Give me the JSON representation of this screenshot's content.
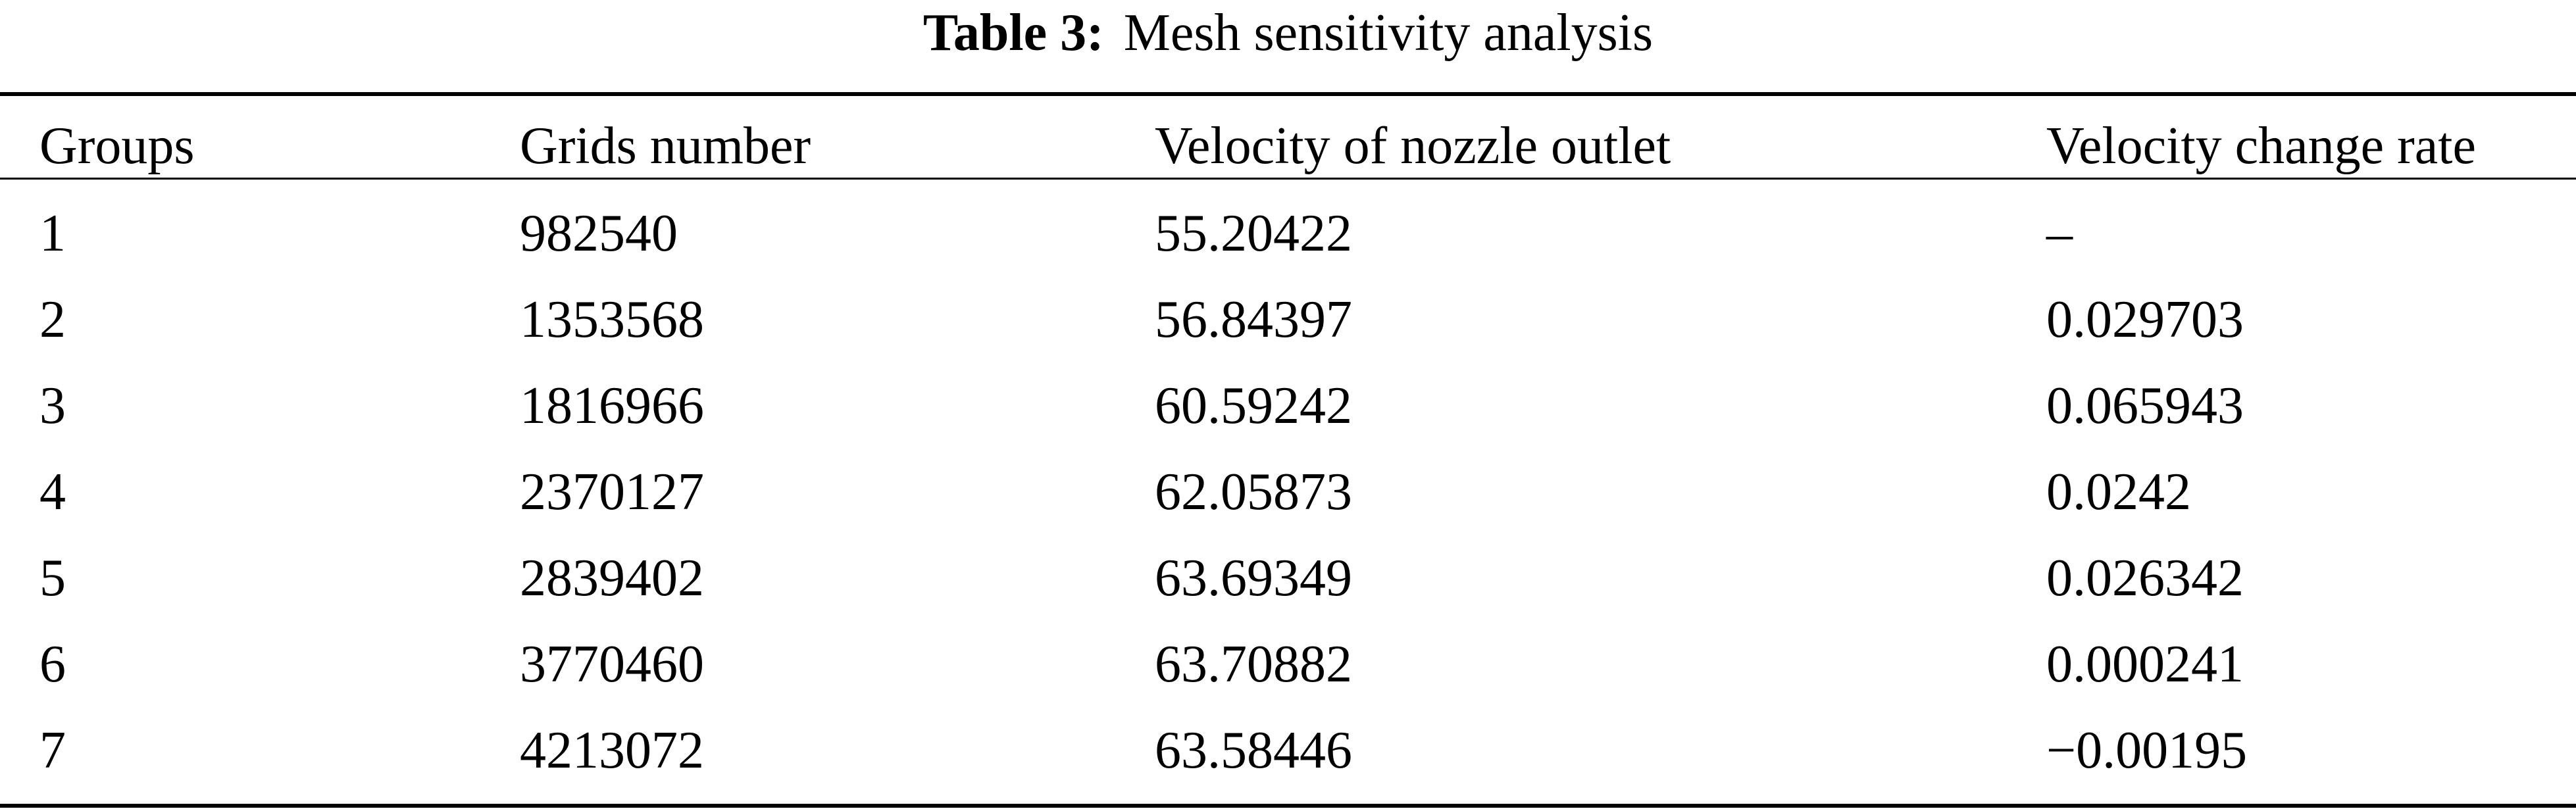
{
  "caption": {
    "label": "Table 3:",
    "title": "Mesh sensitivity analysis"
  },
  "table": {
    "columns": [
      "Groups",
      "Grids number",
      "Velocity of nozzle outlet",
      "Velocity change rate"
    ],
    "rows": [
      [
        "1",
        "982540",
        "55.20422",
        "–"
      ],
      [
        "2",
        "1353568",
        "56.84397",
        "0.029703"
      ],
      [
        "3",
        "1816966",
        "60.59242",
        "0.065943"
      ],
      [
        "4",
        "2370127",
        "62.05873",
        "0.0242"
      ],
      [
        "5",
        "2839402",
        "63.69349",
        "0.026342"
      ],
      [
        "6",
        "3770460",
        "63.70882",
        "0.000241"
      ],
      [
        "7",
        "4213072",
        "63.58446",
        "−0.00195"
      ]
    ]
  }
}
